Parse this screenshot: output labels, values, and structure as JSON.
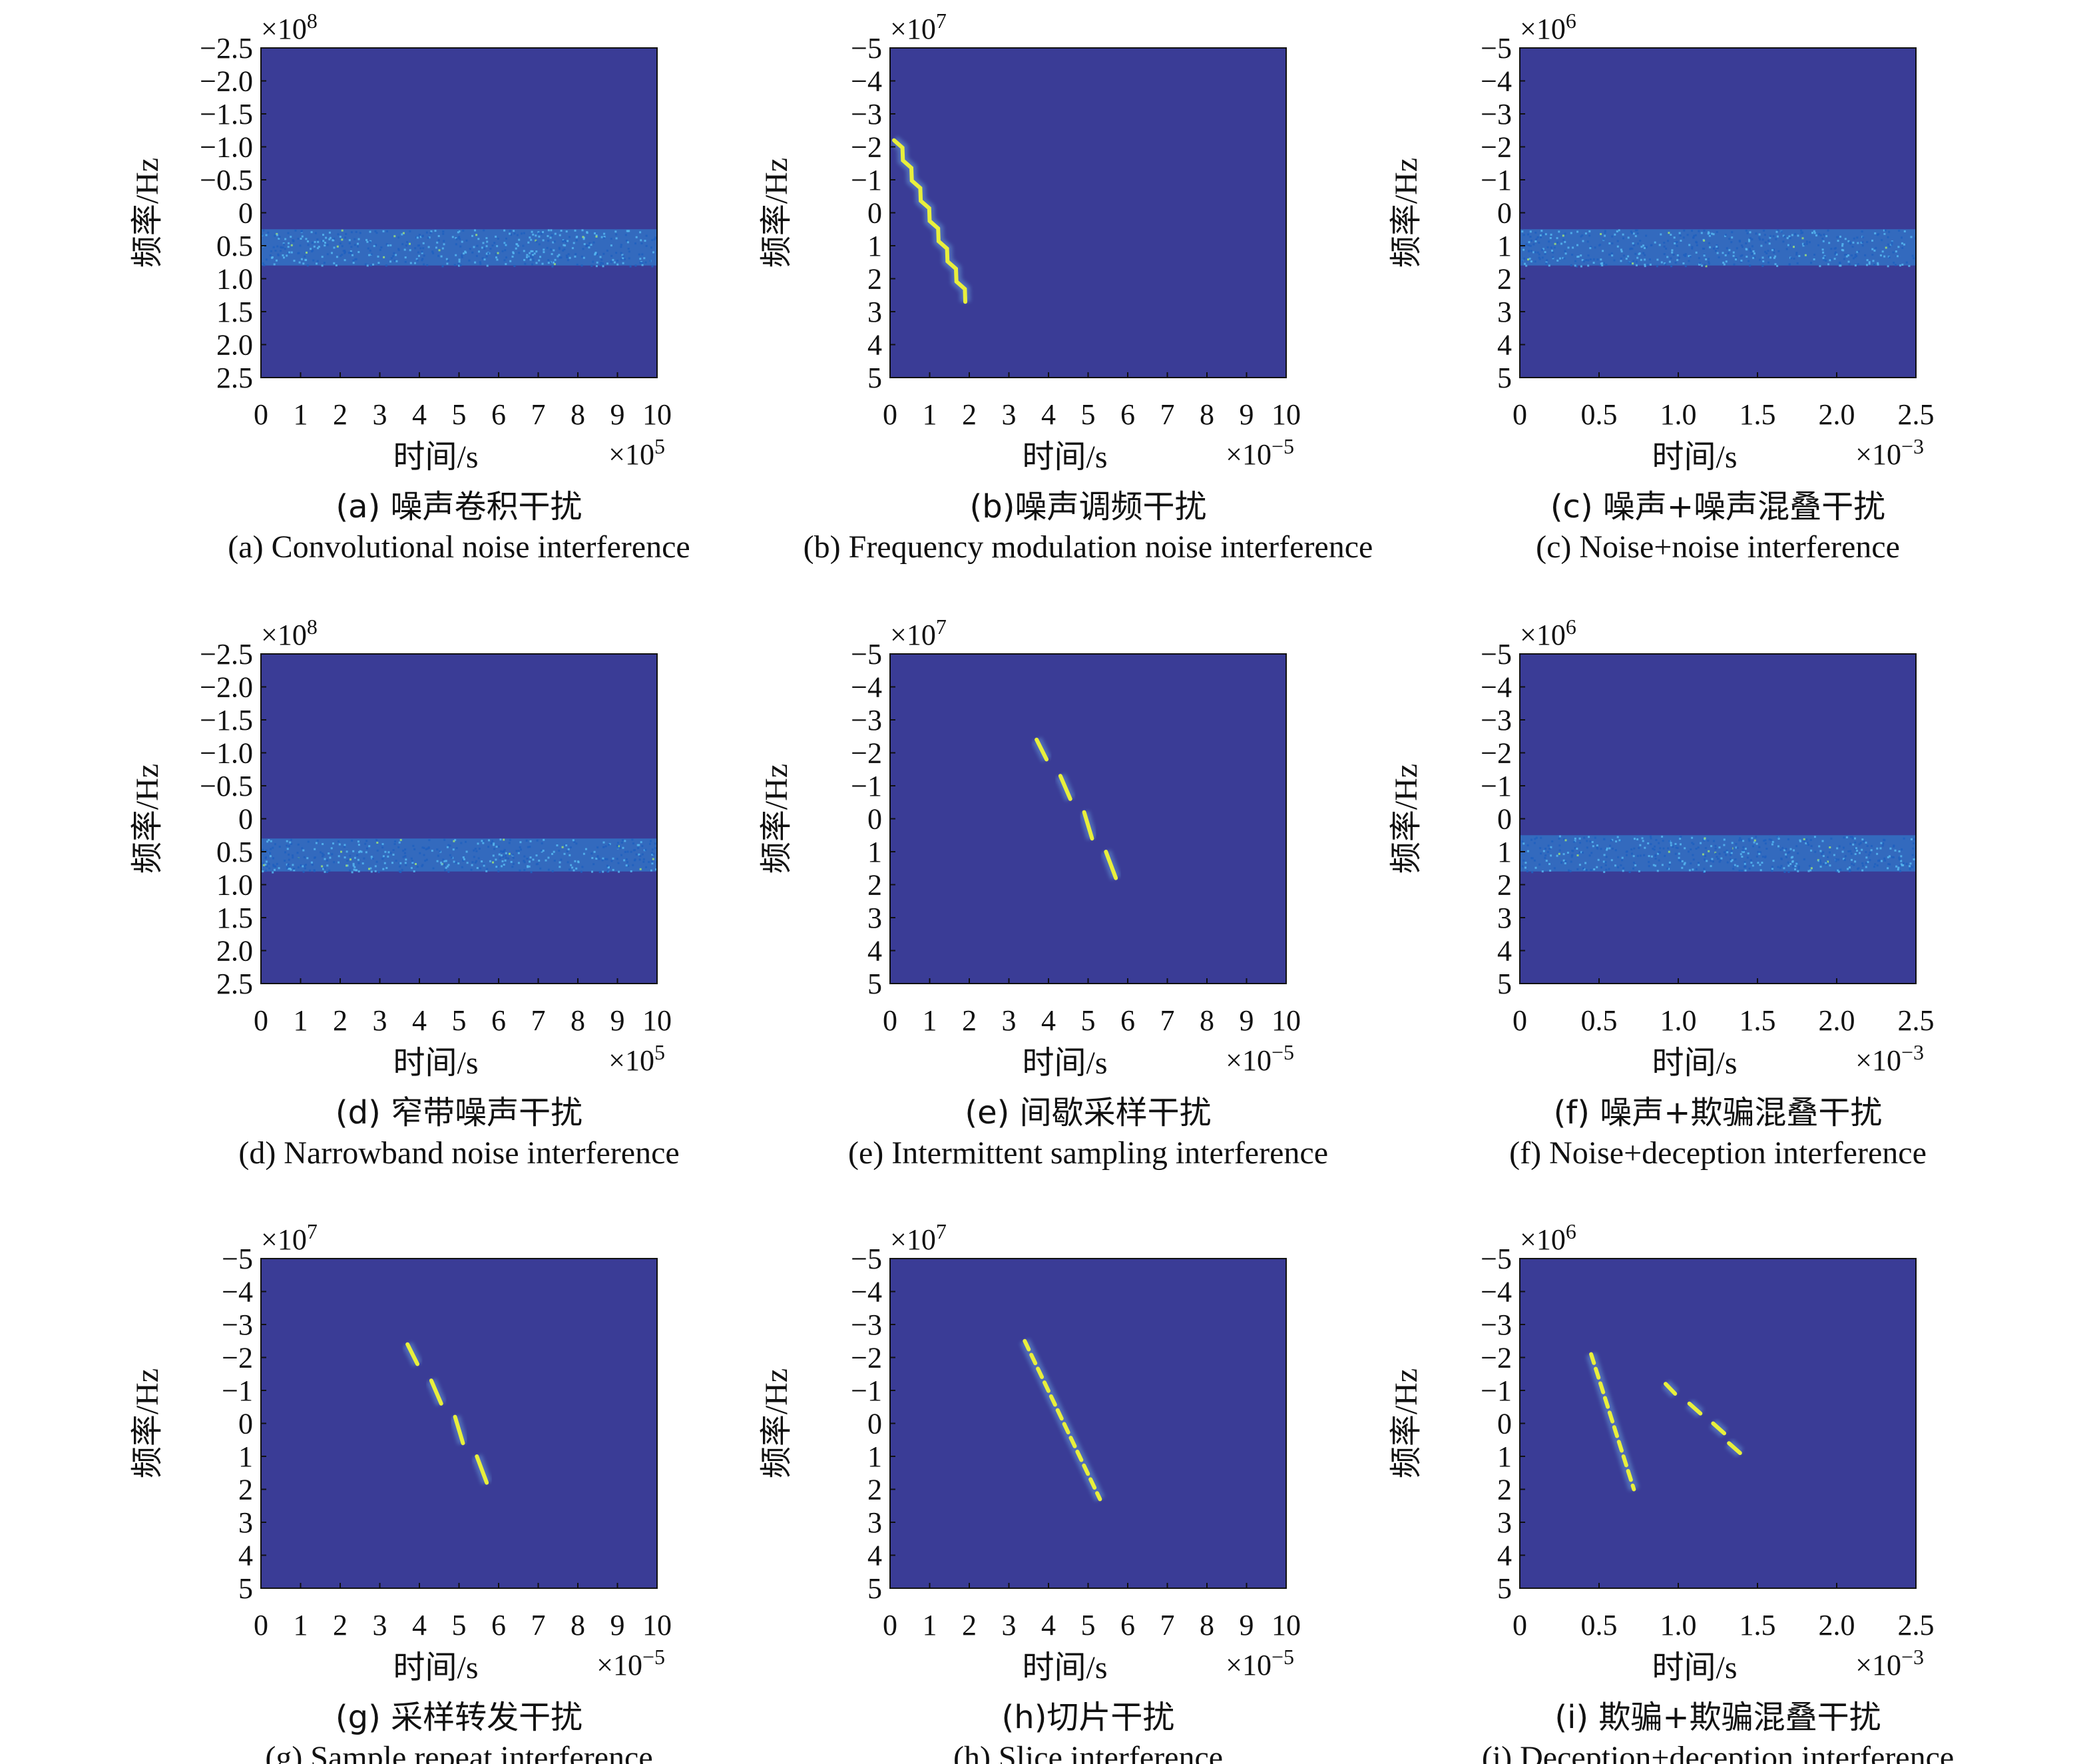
{
  "colors": {
    "background": "#3a3c96",
    "noise": "#2d8fe0",
    "signal": "#e8ef3c"
  },
  "chart_data": [
    {
      "id": "a",
      "type": "heatmap",
      "caption_cn": "(a) 噪声卷积干扰",
      "caption_en": "(a) Convolutional noise interference",
      "xlabel": "时间/s",
      "ylabel": "频率/Hz",
      "x_mult": "×10",
      "x_exp": "5",
      "y_mult": "×10",
      "y_exp": "8",
      "xticks": [
        "0",
        "1",
        "2",
        "3",
        "4",
        "5",
        "6",
        "7",
        "8",
        "9",
        "10"
      ],
      "xlim": [
        0,
        10
      ],
      "yticks": [
        "−2.5",
        "−2.0",
        "−1.5",
        "−1.0",
        "−0.5",
        "0",
        "0.5",
        "1.0",
        "1.5",
        "2.0",
        "2.5"
      ],
      "ylim": [
        -2.5,
        2.5
      ],
      "bands": [
        {
          "x0": 0,
          "x1": 10,
          "y0": 0.25,
          "y1": 0.8
        }
      ],
      "segments": []
    },
    {
      "id": "b",
      "type": "heatmap",
      "caption_cn": "(b)噪声调频干扰",
      "caption_en": "(b) Frequency modulation noise  interference",
      "xlabel": "时间/s",
      "ylabel": "频率/Hz",
      "x_mult": "×10",
      "x_exp": "−5",
      "y_mult": "×10",
      "y_exp": "7",
      "xticks": [
        "0",
        "1",
        "2",
        "3",
        "4",
        "5",
        "6",
        "7",
        "8",
        "9",
        "10"
      ],
      "xlim": [
        0,
        10
      ],
      "yticks": [
        "−5",
        "−4",
        "−3",
        "−2",
        "−1",
        "0",
        "1",
        "2",
        "3",
        "4",
        "5"
      ],
      "ylim": [
        -5,
        5
      ],
      "bands": [],
      "segments": [
        {
          "x0": 0.1,
          "y0": -2.2,
          "x1": 1.9,
          "y1": 2.7,
          "wiggle": true
        }
      ]
    },
    {
      "id": "c",
      "type": "heatmap",
      "caption_cn": "(c) 噪声+噪声混叠干扰",
      "caption_en": "(c) Noise+noise interference",
      "xlabel": "时间/s",
      "ylabel": "频率/Hz",
      "x_mult": "×10",
      "x_exp": "−3",
      "y_mult": "×10",
      "y_exp": "6",
      "xticks": [
        "0",
        "0.5",
        "1.0",
        "1.5",
        "2.0",
        "2.5"
      ],
      "xlim": [
        0,
        2.5
      ],
      "yticks": [
        "−5",
        "−4",
        "−3",
        "−2",
        "−1",
        "0",
        "1",
        "2",
        "3",
        "4",
        "5"
      ],
      "ylim": [
        -5,
        5
      ],
      "bands": [
        {
          "x0": 0,
          "x1": 2.5,
          "y0": 0.5,
          "y1": 1.6
        }
      ],
      "segments": []
    },
    {
      "id": "d",
      "type": "heatmap",
      "caption_cn": "(d) 窄带噪声干扰",
      "caption_en": "(d) Narrowband noise interference",
      "xlabel": "时间/s",
      "ylabel": "频率/Hz",
      "x_mult": "×10",
      "x_exp": "5",
      "y_mult": "×10",
      "y_exp": "8",
      "xticks": [
        "0",
        "1",
        "2",
        "3",
        "4",
        "5",
        "6",
        "7",
        "8",
        "9",
        "10"
      ],
      "xlim": [
        0,
        10
      ],
      "yticks": [
        "−2.5",
        "−2.0",
        "−1.5",
        "−1.0",
        "−0.5",
        "0",
        "0.5",
        "1.0",
        "1.5",
        "2.0",
        "2.5"
      ],
      "ylim": [
        -2.5,
        2.5
      ],
      "bands": [
        {
          "x0": 0,
          "x1": 10,
          "y0": 0.3,
          "y1": 0.8
        }
      ],
      "segments": []
    },
    {
      "id": "e",
      "type": "heatmap",
      "caption_cn": "(e) 间歇采样干扰",
      "caption_en": "(e) Intermittent sampling interference",
      "xlabel": "时间/s",
      "ylabel": "频率/Hz",
      "x_mult": "×10",
      "x_exp": "−5",
      "y_mult": "×10",
      "y_exp": "7",
      "xticks": [
        "0",
        "1",
        "2",
        "3",
        "4",
        "5",
        "6",
        "7",
        "8",
        "9",
        "10"
      ],
      "xlim": [
        0,
        10
      ],
      "yticks": [
        "−5",
        "−4",
        "−3",
        "−2",
        "−1",
        "0",
        "1",
        "2",
        "3",
        "4",
        "5"
      ],
      "ylim": [
        -5,
        5
      ],
      "bands": [],
      "segments": [
        {
          "x0": 3.7,
          "y0": -2.4,
          "x1": 3.95,
          "y1": -1.8
        },
        {
          "x0": 4.3,
          "y0": -1.3,
          "x1": 4.55,
          "y1": -0.6
        },
        {
          "x0": 4.9,
          "y0": -0.2,
          "x1": 5.1,
          "y1": 0.6
        },
        {
          "x0": 5.45,
          "y0": 1.0,
          "x1": 5.7,
          "y1": 1.8
        }
      ]
    },
    {
      "id": "f",
      "type": "heatmap",
      "caption_cn": "(f) 噪声+欺骗混叠干扰",
      "caption_en": "(f) Noise+deception interference",
      "xlabel": "时间/s",
      "ylabel": "频率/Hz",
      "x_mult": "×10",
      "x_exp": "−3",
      "y_mult": "×10",
      "y_exp": "6",
      "xticks": [
        "0",
        "0.5",
        "1.0",
        "1.5",
        "2.0",
        "2.5"
      ],
      "xlim": [
        0,
        2.5
      ],
      "yticks": [
        "−5",
        "−4",
        "−3",
        "−2",
        "−1",
        "0",
        "1",
        "2",
        "3",
        "4",
        "5"
      ],
      "ylim": [
        -5,
        5
      ],
      "bands": [
        {
          "x0": 0,
          "x1": 2.5,
          "y0": 0.5,
          "y1": 1.6
        }
      ],
      "segments": []
    },
    {
      "id": "g",
      "type": "heatmap",
      "caption_cn": "(g) 采样转发干扰",
      "caption_en": "(g) Sample repeat interference",
      "xlabel": "时间/s",
      "ylabel": "频率/Hz",
      "x_mult": "×10",
      "x_exp": "−5",
      "y_mult": "×10",
      "y_exp": "7",
      "xticks": [
        "0",
        "1",
        "2",
        "3",
        "4",
        "5",
        "6",
        "7",
        "8",
        "9",
        "10"
      ],
      "xlim": [
        0,
        10
      ],
      "yticks": [
        "−5",
        "−4",
        "−3",
        "−2",
        "−1",
        "0",
        "1",
        "2",
        "3",
        "4",
        "5"
      ],
      "ylim": [
        -5,
        5
      ],
      "bands": [],
      "segments": [
        {
          "x0": 3.7,
          "y0": -2.4,
          "x1": 3.95,
          "y1": -1.8
        },
        {
          "x0": 4.3,
          "y0": -1.3,
          "x1": 4.55,
          "y1": -0.6
        },
        {
          "x0": 4.9,
          "y0": -0.2,
          "x1": 5.1,
          "y1": 0.6
        },
        {
          "x0": 5.45,
          "y0": 1.0,
          "x1": 5.7,
          "y1": 1.8
        }
      ]
    },
    {
      "id": "h",
      "type": "heatmap",
      "caption_cn": "(h)切片干扰",
      "caption_en": "(h) Slice interference",
      "xlabel": "时间/s",
      "ylabel": "频率/Hz",
      "x_mult": "×10",
      "x_exp": "−5",
      "y_mult": "×10",
      "y_exp": "7",
      "xticks": [
        "0",
        "1",
        "2",
        "3",
        "4",
        "5",
        "6",
        "7",
        "8",
        "9",
        "10"
      ],
      "xlim": [
        0,
        10
      ],
      "yticks": [
        "−5",
        "−4",
        "−3",
        "−2",
        "−1",
        "0",
        "1",
        "2",
        "3",
        "4",
        "5"
      ],
      "ylim": [
        -5,
        5
      ],
      "bands": [],
      "segments": [
        {
          "x0": 3.4,
          "y0": -2.5,
          "x1": 5.3,
          "y1": 2.3,
          "dashed": true
        }
      ]
    },
    {
      "id": "i",
      "type": "heatmap",
      "caption_cn": "(i) 欺骗+欺骗混叠干扰",
      "caption_en": "(i) Deception+deception interference",
      "xlabel": "时间/s",
      "ylabel": "频率/Hz",
      "x_mult": "×10",
      "x_exp": "−3",
      "y_mult": "×10",
      "y_exp": "6",
      "xticks": [
        "0",
        "0.5",
        "1.0",
        "1.5",
        "2.0",
        "2.5"
      ],
      "xlim": [
        0,
        2.5
      ],
      "yticks": [
        "−5",
        "−4",
        "−3",
        "−2",
        "−1",
        "0",
        "1",
        "2",
        "3",
        "4",
        "5"
      ],
      "ylim": [
        -5,
        5
      ],
      "bands": [],
      "segments": [
        {
          "x0": 0.45,
          "y0": -2.1,
          "x1": 0.72,
          "y1": 2.0,
          "dashed": true
        },
        {
          "x0": 0.92,
          "y0": -1.2,
          "x1": 0.98,
          "y1": -0.9
        },
        {
          "x0": 1.07,
          "y0": -0.6,
          "x1": 1.14,
          "y1": -0.3
        },
        {
          "x0": 1.22,
          "y0": 0.0,
          "x1": 1.29,
          "y1": 0.3
        },
        {
          "x0": 1.32,
          "y0": 0.6,
          "x1": 1.39,
          "y1": 0.9
        }
      ]
    }
  ]
}
